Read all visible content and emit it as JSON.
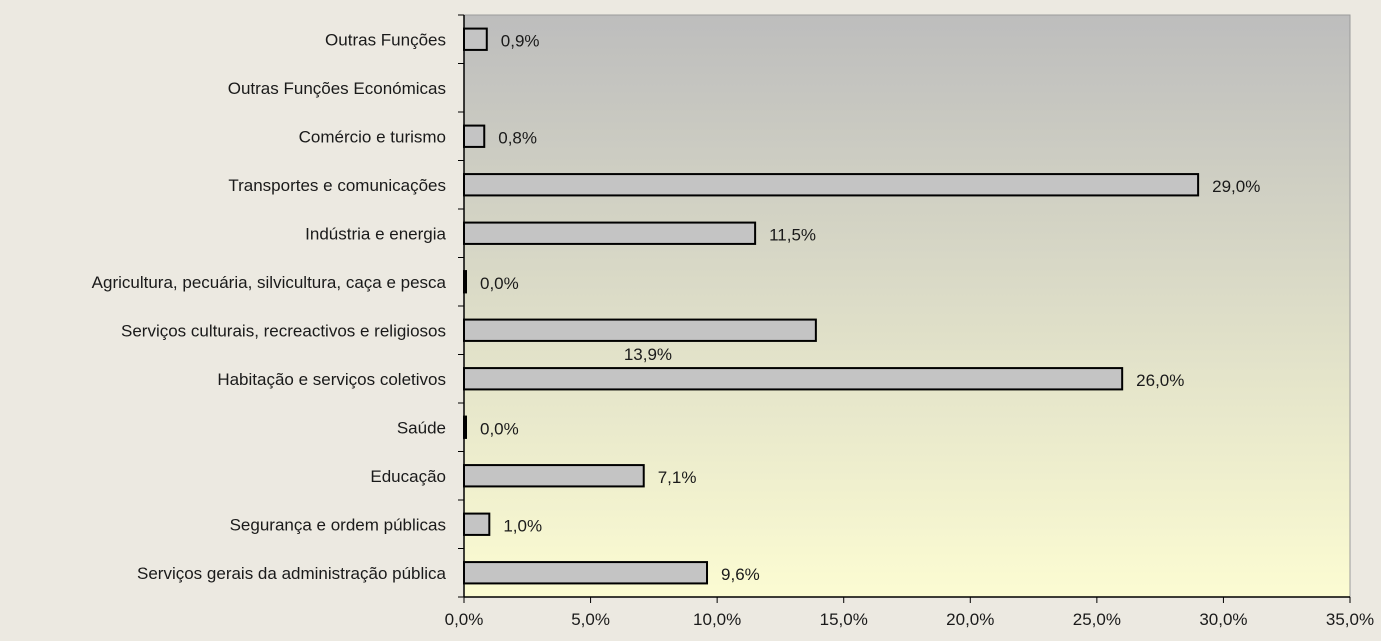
{
  "chart_data": {
    "type": "bar",
    "orientation": "horizontal",
    "categories": [
      "Outras Funções",
      "Outras Funções Económicas",
      "Comércio e turismo",
      "Transportes e comunicações",
      "Indústria e energia",
      "Agricultura, pecuária, silvicultura, caça e pesca",
      "Serviços culturais, recreactivos e religiosos",
      "Habitação e serviços coletivos",
      "Saúde",
      "Educação",
      "Segurança e ordem públicas",
      "Serviços gerais da administração pública"
    ],
    "values": [
      0.9,
      null,
      0.8,
      29.0,
      11.5,
      0.0,
      13.9,
      26.0,
      0.0,
      7.1,
      1.0,
      9.6
    ],
    "data_labels": [
      "0,9%",
      "",
      "0,8%",
      "29,0%",
      "11,5%",
      "0,0%",
      "13,9%",
      "26,0%",
      "0,0%",
      "7,1%",
      "1,0%",
      "9,6%"
    ],
    "xlim": [
      0,
      35
    ],
    "x_ticks": [
      0,
      5,
      10,
      15,
      20,
      25,
      30,
      35
    ],
    "x_tick_labels": [
      "0,0%",
      "5,0%",
      "10,0%",
      "15,0%",
      "20,0%",
      "25,0%",
      "30,0%",
      "35,0%"
    ],
    "title": "",
    "xlabel": "",
    "ylabel": "",
    "grid": false,
    "legend": "none",
    "colors": {
      "page_background": "#ece9e1",
      "plot_gradient_top": "#bdbdbd",
      "plot_gradient_bottom": "#fcfcd2",
      "bar_fill": "#c4c4c4",
      "bar_stroke": "#000000"
    }
  }
}
